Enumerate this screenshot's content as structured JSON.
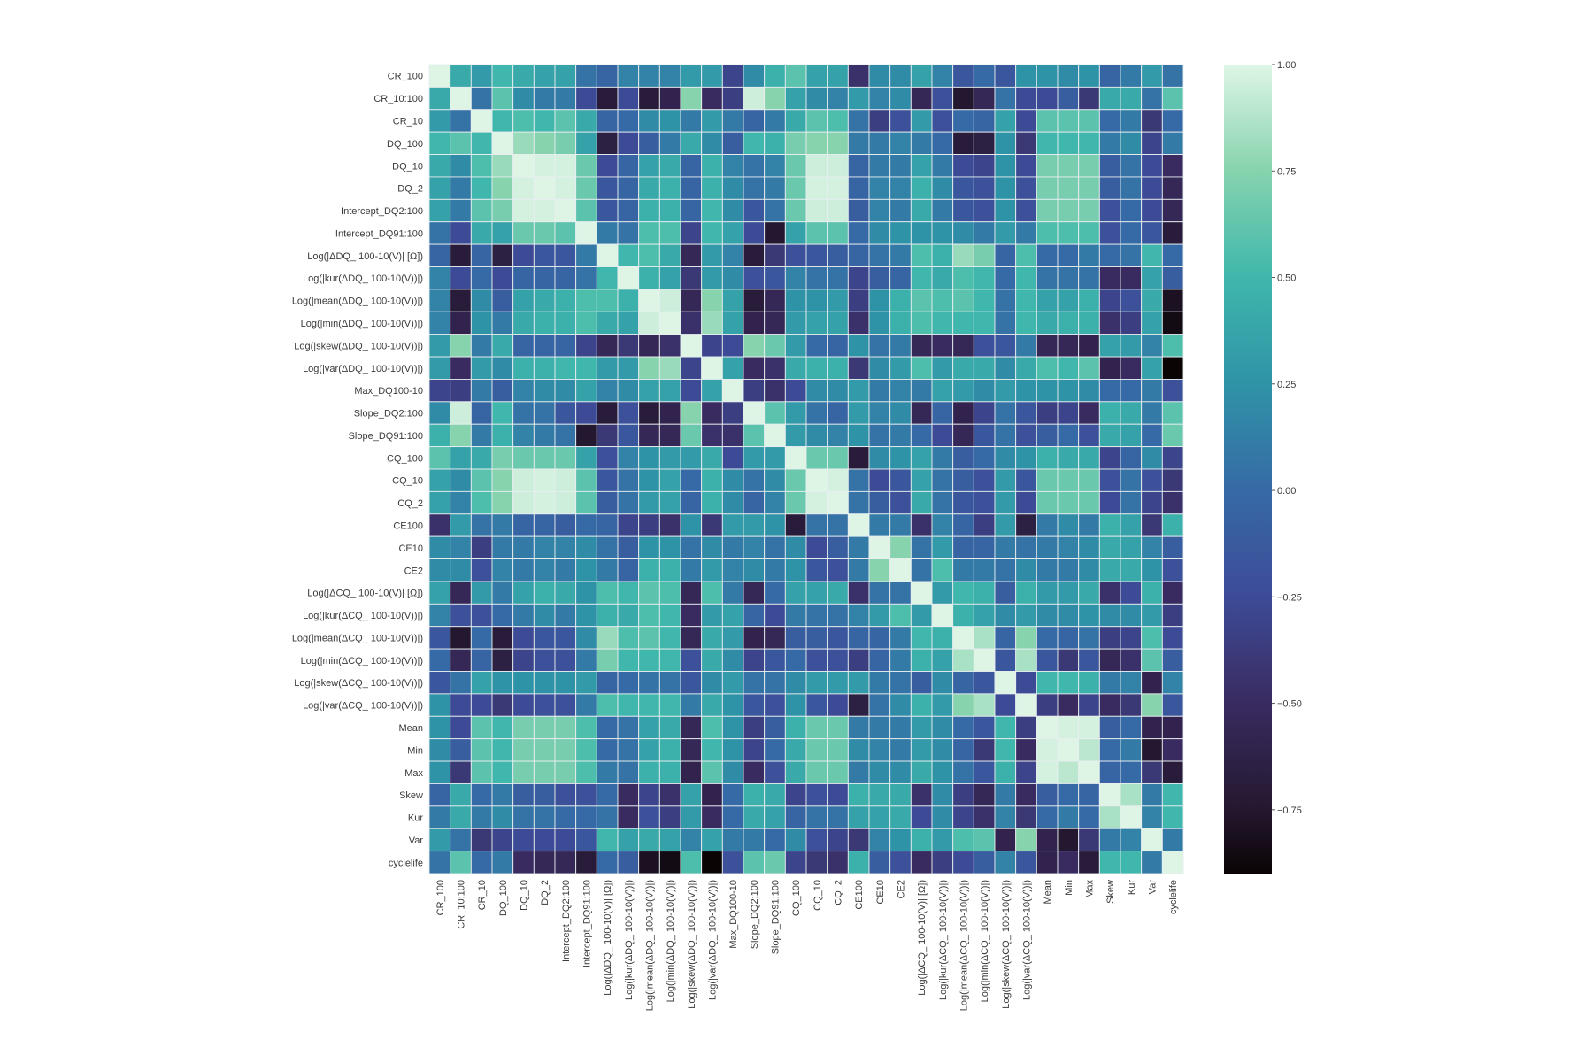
{
  "chart_data": {
    "type": "heatmap",
    "title": "",
    "symmetric": true,
    "labels": [
      "CR_100",
      "CR_10:100",
      "CR_10",
      "DQ_100",
      "DQ_10",
      "DQ_2",
      "Intercept_DQ2:100",
      "Intercept_DQ91:100",
      "Log(|ΔDQ_ 100-10(V)| [Ω])",
      "Log(|kur(ΔDQ_ 100-10(V))|)",
      "Log(|mean(ΔDQ_ 100-10(V))|)",
      "Log(|min(ΔDQ_ 100-10(V))|)",
      "Log(|skew(ΔDQ_ 100-10(V))|)",
      "Log(|var(ΔDQ_ 100-10(V))|)",
      "Max_DQ100-10",
      "Slope_DQ2:100",
      "Slope_DQ91:100",
      "CQ_100",
      "CQ_10",
      "CQ_2",
      "CE100",
      "CE10",
      "CE2",
      "Log(|ΔCQ_ 100-10(V)| [Ω])",
      "Log(|kur(ΔCQ_ 100-10(V))|)",
      "Log(|mean(ΔCQ_ 100-10(V))|)",
      "Log(|min(ΔCQ_ 100-10(V))|)",
      "Log(|skew(ΔCQ_ 100-10(V))|)",
      "Log(|var(ΔCQ_ 100-10(V))|)",
      "Mean",
      "Min",
      "Max",
      "Skew",
      "Kur",
      "Var",
      "cyclelife"
    ],
    "values_lower_triangle": [
      [
        1
      ],
      [
        0.4,
        1
      ],
      [
        0.3,
        0.05,
        1
      ],
      [
        0.5,
        0.6,
        0.5,
        1
      ],
      [
        0.4,
        0.2,
        0.55,
        0.8,
        1
      ],
      [
        0.35,
        0.1,
        0.5,
        0.75,
        0.97,
        1
      ],
      [
        0.35,
        0.1,
        0.6,
        0.7,
        0.97,
        0.97,
        1
      ],
      [
        0.05,
        -0.25,
        0.4,
        0.35,
        0.65,
        0.65,
        0.6,
        1
      ],
      [
        -0.05,
        -0.7,
        -0.05,
        -0.65,
        -0.25,
        -0.15,
        -0.15,
        0.1,
        1
      ],
      [
        0.15,
        -0.25,
        0.0,
        -0.25,
        -0.05,
        -0.05,
        -0.05,
        0.05,
        0.5,
        1
      ],
      [
        0.15,
        -0.7,
        0.2,
        -0.1,
        0.35,
        0.4,
        0.45,
        0.55,
        0.55,
        0.45,
        1
      ],
      [
        0.15,
        -0.6,
        0.25,
        0.1,
        0.4,
        0.45,
        0.45,
        0.55,
        0.4,
        0.35,
        0.95,
        1
      ],
      [
        0.3,
        0.75,
        0.1,
        0.4,
        -0.05,
        -0.05,
        -0.05,
        -0.3,
        -0.55,
        -0.4,
        -0.55,
        -0.45,
        1
      ],
      [
        0.3,
        -0.5,
        0.3,
        0.2,
        0.45,
        0.45,
        0.5,
        0.5,
        0.3,
        0.3,
        0.75,
        0.8,
        -0.3,
        1
      ],
      [
        -0.3,
        -0.35,
        0.1,
        -0.1,
        0.15,
        0.2,
        0.2,
        0.35,
        0.15,
        0.2,
        0.35,
        0.35,
        -0.25,
        0.35,
        1
      ],
      [
        0.2,
        0.95,
        -0.05,
        0.5,
        0.05,
        0.05,
        -0.15,
        -0.25,
        -0.7,
        -0.2,
        -0.7,
        -0.6,
        0.75,
        -0.5,
        -0.35,
        1
      ],
      [
        0.45,
        0.75,
        0.1,
        0.45,
        0.15,
        0.1,
        0.05,
        -0.75,
        -0.4,
        -0.15,
        -0.55,
        -0.55,
        0.65,
        -0.45,
        -0.45,
        0.6,
        1
      ],
      [
        0.6,
        0.35,
        0.4,
        0.7,
        0.65,
        0.65,
        0.65,
        0.35,
        -0.2,
        0.15,
        0.25,
        0.3,
        0.3,
        0.4,
        -0.25,
        0.3,
        0.3,
        1
      ],
      [
        0.35,
        0.2,
        0.6,
        0.75,
        0.95,
        0.97,
        0.95,
        0.6,
        -0.15,
        0.05,
        0.25,
        0.35,
        0.0,
        0.45,
        0.2,
        0.05,
        0.2,
        0.65,
        1
      ],
      [
        0.35,
        0.15,
        0.55,
        0.75,
        0.95,
        0.97,
        0.95,
        0.6,
        -0.1,
        0.05,
        0.3,
        0.35,
        -0.05,
        0.45,
        0.2,
        -0.05,
        0.15,
        0.65,
        0.97,
        1
      ],
      [
        -0.45,
        0.3,
        0.05,
        0.1,
        -0.05,
        -0.05,
        -0.1,
        0.0,
        -0.05,
        -0.3,
        -0.35,
        -0.45,
        0.25,
        -0.4,
        0.3,
        0.3,
        0.25,
        -0.7,
        0.05,
        0.05,
        1
      ],
      [
        0.2,
        0.15,
        -0.35,
        0.1,
        0.1,
        0.15,
        0.15,
        0.2,
        0.05,
        -0.1,
        0.25,
        0.25,
        0.05,
        0.2,
        0.1,
        0.15,
        0.05,
        0.2,
        -0.25,
        -0.1,
        0.1,
        1
      ],
      [
        0.2,
        0.2,
        -0.2,
        0.15,
        0.1,
        0.15,
        0.1,
        0.25,
        0.1,
        -0.05,
        0.45,
        0.45,
        0.1,
        0.3,
        0.15,
        0.2,
        0.1,
        0.25,
        -0.15,
        -0.2,
        0.1,
        0.75,
        1
      ],
      [
        0.35,
        -0.55,
        0.3,
        0.1,
        0.35,
        0.45,
        0.4,
        0.25,
        0.55,
        0.5,
        0.6,
        0.55,
        -0.55,
        0.55,
        0.1,
        -0.55,
        0.0,
        0.35,
        0.35,
        0.4,
        -0.45,
        0.05,
        0.05,
        1
      ],
      [
        0.15,
        -0.2,
        -0.2,
        0.0,
        0.1,
        0.2,
        0.1,
        0.25,
        0.45,
        0.4,
        0.55,
        0.5,
        -0.5,
        0.3,
        0.35,
        -0.05,
        -0.25,
        0.1,
        0.05,
        0.05,
        0.15,
        0.3,
        0.55,
        0.3,
        1
      ],
      [
        -0.15,
        -0.75,
        0.0,
        -0.7,
        -0.25,
        -0.15,
        -0.15,
        0.2,
        0.8,
        0.55,
        0.6,
        0.5,
        -0.55,
        0.4,
        0.3,
        -0.6,
        -0.55,
        -0.1,
        -0.1,
        -0.15,
        -0.05,
        -0.05,
        0.1,
        0.5,
        0.45,
        1
      ],
      [
        0.0,
        -0.55,
        -0.05,
        -0.65,
        -0.3,
        -0.2,
        -0.2,
        0.1,
        0.7,
        0.5,
        0.5,
        0.5,
        -0.2,
        0.4,
        0.2,
        -0.3,
        -0.15,
        0.0,
        -0.2,
        -0.2,
        -0.35,
        -0.05,
        0.1,
        0.45,
        0.35,
        0.85,
        1
      ],
      [
        -0.15,
        0.05,
        0.35,
        0.25,
        0.25,
        0.25,
        0.25,
        0.3,
        -0.05,
        0.0,
        0.05,
        0.05,
        -0.15,
        0.2,
        0.3,
        0.05,
        0.05,
        0.2,
        0.3,
        0.3,
        0.3,
        0.1,
        0.05,
        -0.1,
        0.2,
        -0.05,
        -0.15,
        1
      ],
      [
        0.25,
        -0.25,
        -0.25,
        -0.4,
        -0.25,
        -0.2,
        -0.2,
        0.1,
        0.55,
        0.5,
        0.5,
        0.5,
        0.1,
        0.4,
        0.25,
        -0.15,
        -0.2,
        0.25,
        -0.15,
        -0.25,
        -0.65,
        0.05,
        0.2,
        0.45,
        0.3,
        0.75,
        0.85,
        -0.25,
        1
      ],
      [
        0.25,
        -0.25,
        0.6,
        0.5,
        0.7,
        0.7,
        0.7,
        0.55,
        0.0,
        0.05,
        0.35,
        0.4,
        -0.55,
        0.55,
        0.25,
        -0.35,
        -0.1,
        0.45,
        0.65,
        0.65,
        0.1,
        0.1,
        0.1,
        0.3,
        0.2,
        0.0,
        -0.15,
        0.5,
        -0.35,
        1
      ],
      [
        0.2,
        -0.1,
        0.6,
        0.5,
        0.7,
        0.7,
        0.7,
        0.55,
        0.0,
        0.05,
        0.35,
        0.45,
        -0.55,
        0.5,
        0.25,
        -0.3,
        0.0,
        0.4,
        0.65,
        0.65,
        0.2,
        0.15,
        0.1,
        0.3,
        0.2,
        -0.05,
        -0.4,
        0.5,
        -0.5,
        0.97,
        1
      ],
      [
        0.25,
        -0.4,
        0.6,
        0.5,
        0.7,
        0.7,
        0.7,
        0.55,
        0.1,
        0.05,
        0.45,
        0.45,
        -0.6,
        0.6,
        0.2,
        -0.5,
        -0.2,
        0.4,
        0.65,
        0.65,
        0.1,
        0.2,
        0.2,
        0.4,
        0.25,
        0.05,
        -0.15,
        0.45,
        -0.3,
        0.97,
        0.9,
        1
      ],
      [
        -0.05,
        0.4,
        0.0,
        0.1,
        -0.1,
        -0.1,
        -0.2,
        -0.2,
        0.0,
        -0.5,
        -0.3,
        -0.45,
        0.35,
        -0.6,
        0.0,
        0.45,
        0.4,
        -0.3,
        -0.2,
        -0.25,
        0.45,
        0.4,
        0.4,
        -0.45,
        0.2,
        -0.35,
        -0.55,
        0.1,
        -0.5,
        -0.1,
        0.0,
        -0.05,
        1
      ],
      [
        0.1,
        0.4,
        0.1,
        0.2,
        0.05,
        0.05,
        0.0,
        0.0,
        0.05,
        -0.5,
        -0.2,
        -0.35,
        0.3,
        -0.5,
        0.0,
        0.4,
        0.35,
        -0.05,
        0.05,
        0.05,
        0.35,
        0.35,
        0.4,
        -0.25,
        0.2,
        -0.3,
        -0.45,
        0.15,
        -0.4,
        0.0,
        0.1,
        0.0,
        0.85,
        1
      ],
      [
        0.3,
        0.05,
        -0.4,
        -0.3,
        -0.25,
        -0.25,
        -0.25,
        -0.15,
        0.5,
        0.35,
        0.4,
        0.35,
        0.15,
        0.35,
        0.1,
        0.1,
        0.0,
        0.2,
        -0.2,
        -0.3,
        -0.4,
        0.15,
        0.25,
        0.45,
        0.3,
        0.55,
        0.6,
        -0.6,
        0.75,
        -0.6,
        -0.75,
        -0.4,
        0.1,
        0.15,
        1
      ],
      [
        0.05,
        0.6,
        0.0,
        0.1,
        -0.5,
        -0.55,
        -0.55,
        -0.7,
        0.0,
        -0.1,
        -0.8,
        -0.85,
        0.55,
        -0.9,
        -0.2,
        0.6,
        0.65,
        -0.3,
        -0.4,
        -0.45,
        0.45,
        -0.1,
        -0.2,
        -0.5,
        -0.35,
        -0.25,
        -0.1,
        0.15,
        -0.15,
        -0.6,
        -0.5,
        -0.7,
        0.5,
        0.5,
        0.1,
        1
      ]
    ],
    "vmin": -0.9,
    "vmax": 1.0,
    "colorbar": {
      "ticks": [
        1.0,
        0.75,
        0.5,
        0.25,
        0.0,
        -0.25,
        -0.5,
        -0.75
      ],
      "tick_labels": [
        "1.00",
        "0.75",
        "0.50",
        "0.25",
        "0.00",
        "−0.25",
        "−0.50",
        "−0.75"
      ],
      "placement": "right"
    },
    "colormap": [
      {
        "value": -0.9,
        "color": "#0b0405"
      },
      {
        "value": -0.75,
        "color": "#241830"
      },
      {
        "value": -0.5,
        "color": "#392b60"
      },
      {
        "value": -0.25,
        "color": "#3d4b97"
      },
      {
        "value": 0.0,
        "color": "#366aa6"
      },
      {
        "value": 0.25,
        "color": "#2f93a7"
      },
      {
        "value": 0.5,
        "color": "#3fb7ac"
      },
      {
        "value": 0.75,
        "color": "#86d3ae"
      },
      {
        "value": 1.0,
        "color": "#def5e5"
      }
    ],
    "xlabel": "",
    "ylabel": ""
  }
}
